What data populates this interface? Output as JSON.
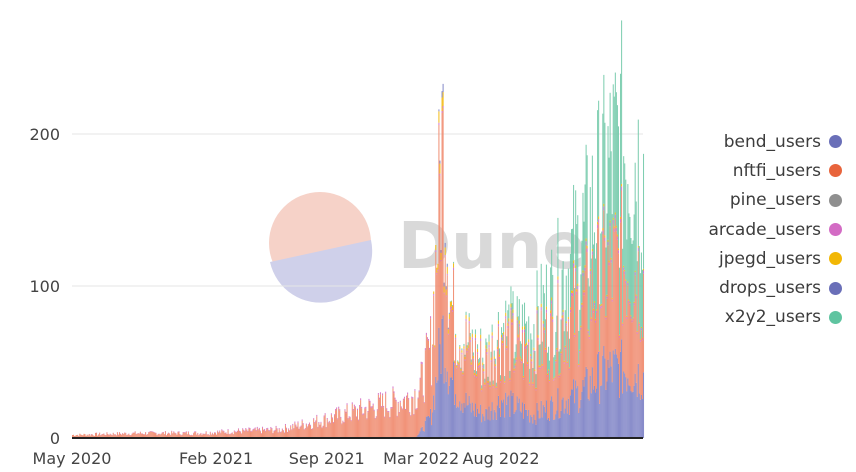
{
  "colors": {
    "bend": "#7b7fc4",
    "nftfi": "#f0876a",
    "pine": "#9a9a9a",
    "arcade": "#d36bc4",
    "jpegd": "#f2b705",
    "drops": "#7b7fc4",
    "x2y2": "#71c9a8",
    "watermark": "#d9d9d9",
    "grid": "#e6e6e6"
  },
  "watermark": {
    "text": "Dune"
  },
  "chart_data": {
    "type": "area",
    "stacked": true,
    "x_tick_labels": [
      "May 2020",
      "Feb 2021",
      "Sep 2021",
      "Mar 2022",
      "Aug 2022"
    ],
    "x_tick_dates": [
      "2020-05-01",
      "2021-02-01",
      "2021-09-01",
      "2022-03-01",
      "2022-08-01"
    ],
    "x_range": [
      "2020-05-01",
      "2023-04-30"
    ],
    "y_ticks": [
      0,
      100,
      200
    ],
    "ylim": [
      0,
      280
    ],
    "grid": true,
    "legend_position": "right",
    "series": [
      {
        "name": "bend_users",
        "x": [
          "2020-05-01",
          "2022-02-15",
          "2022-03-01",
          "2022-03-20",
          "2022-04-10",
          "2022-04-25",
          "2022-05-10",
          "2022-06-01",
          "2022-07-01",
          "2022-08-01",
          "2022-09-01",
          "2022-10-01",
          "2022-11-01",
          "2022-12-01",
          "2023-01-01",
          "2023-02-01",
          "2023-03-01",
          "2023-04-01",
          "2023-04-30"
        ],
        "y": [
          0,
          0,
          5,
          15,
          70,
          40,
          30,
          20,
          15,
          25,
          20,
          15,
          20,
          25,
          30,
          40,
          45,
          45,
          40
        ]
      },
      {
        "name": "nftfi_users",
        "x": [
          "2020-05-01",
          "2020-09-01",
          "2021-01-01",
          "2021-03-01",
          "2021-06-01",
          "2021-09-01",
          "2021-12-01",
          "2022-02-01",
          "2022-03-01",
          "2022-03-20",
          "2022-04-10",
          "2022-04-25",
          "2022-05-10",
          "2022-06-01",
          "2022-07-01",
          "2022-08-01",
          "2022-09-01",
          "2022-10-01",
          "2022-11-01",
          "2022-12-01",
          "2023-01-01",
          "2023-02-01",
          "2023-03-01",
          "2023-04-01",
          "2023-04-30"
        ],
        "y": [
          2,
          3,
          3,
          4,
          5,
          12,
          20,
          25,
          30,
          45,
          120,
          45,
          40,
          35,
          30,
          40,
          35,
          40,
          45,
          50,
          55,
          60,
          65,
          70,
          60
        ]
      },
      {
        "name": "pine_users",
        "x": [
          "2020-05-01",
          "2023-04-30"
        ],
        "y": [
          0,
          0
        ]
      },
      {
        "name": "arcade_users",
        "x": [
          "2020-05-01",
          "2022-03-01",
          "2023-04-30"
        ],
        "y": [
          0,
          1,
          2
        ]
      },
      {
        "name": "jpegd_users",
        "x": [
          "2020-05-01",
          "2022-03-20",
          "2022-04-10",
          "2022-05-01",
          "2023-04-30"
        ],
        "y": [
          0,
          0,
          8,
          2,
          1
        ]
      },
      {
        "name": "drops_users",
        "x": [
          "2020-05-01",
          "2022-04-01",
          "2022-04-12",
          "2022-04-25",
          "2023-04-30"
        ],
        "y": [
          0,
          0,
          5,
          0,
          0
        ]
      },
      {
        "name": "x2y2_users",
        "x": [
          "2020-05-01",
          "2022-04-15",
          "2022-06-01",
          "2022-08-01",
          "2022-10-01",
          "2022-12-01",
          "2023-01-15",
          "2023-02-15",
          "2023-03-15",
          "2023-04-30"
        ],
        "y": [
          0,
          0,
          2,
          5,
          15,
          30,
          45,
          60,
          75,
          70
        ]
      }
    ]
  },
  "legend": {
    "items": [
      {
        "label": "bend_users",
        "color": "#6a6fb8"
      },
      {
        "label": "nftfi_users",
        "color": "#e8643c"
      },
      {
        "label": "pine_users",
        "color": "#8f8f8f"
      },
      {
        "label": "arcade_users",
        "color": "#d36bc4"
      },
      {
        "label": "jpegd_users",
        "color": "#f2b705"
      },
      {
        "label": "drops_users",
        "color": "#6a6fb8"
      },
      {
        "label": "x2y2_users",
        "color": "#5fc4a0"
      }
    ]
  }
}
